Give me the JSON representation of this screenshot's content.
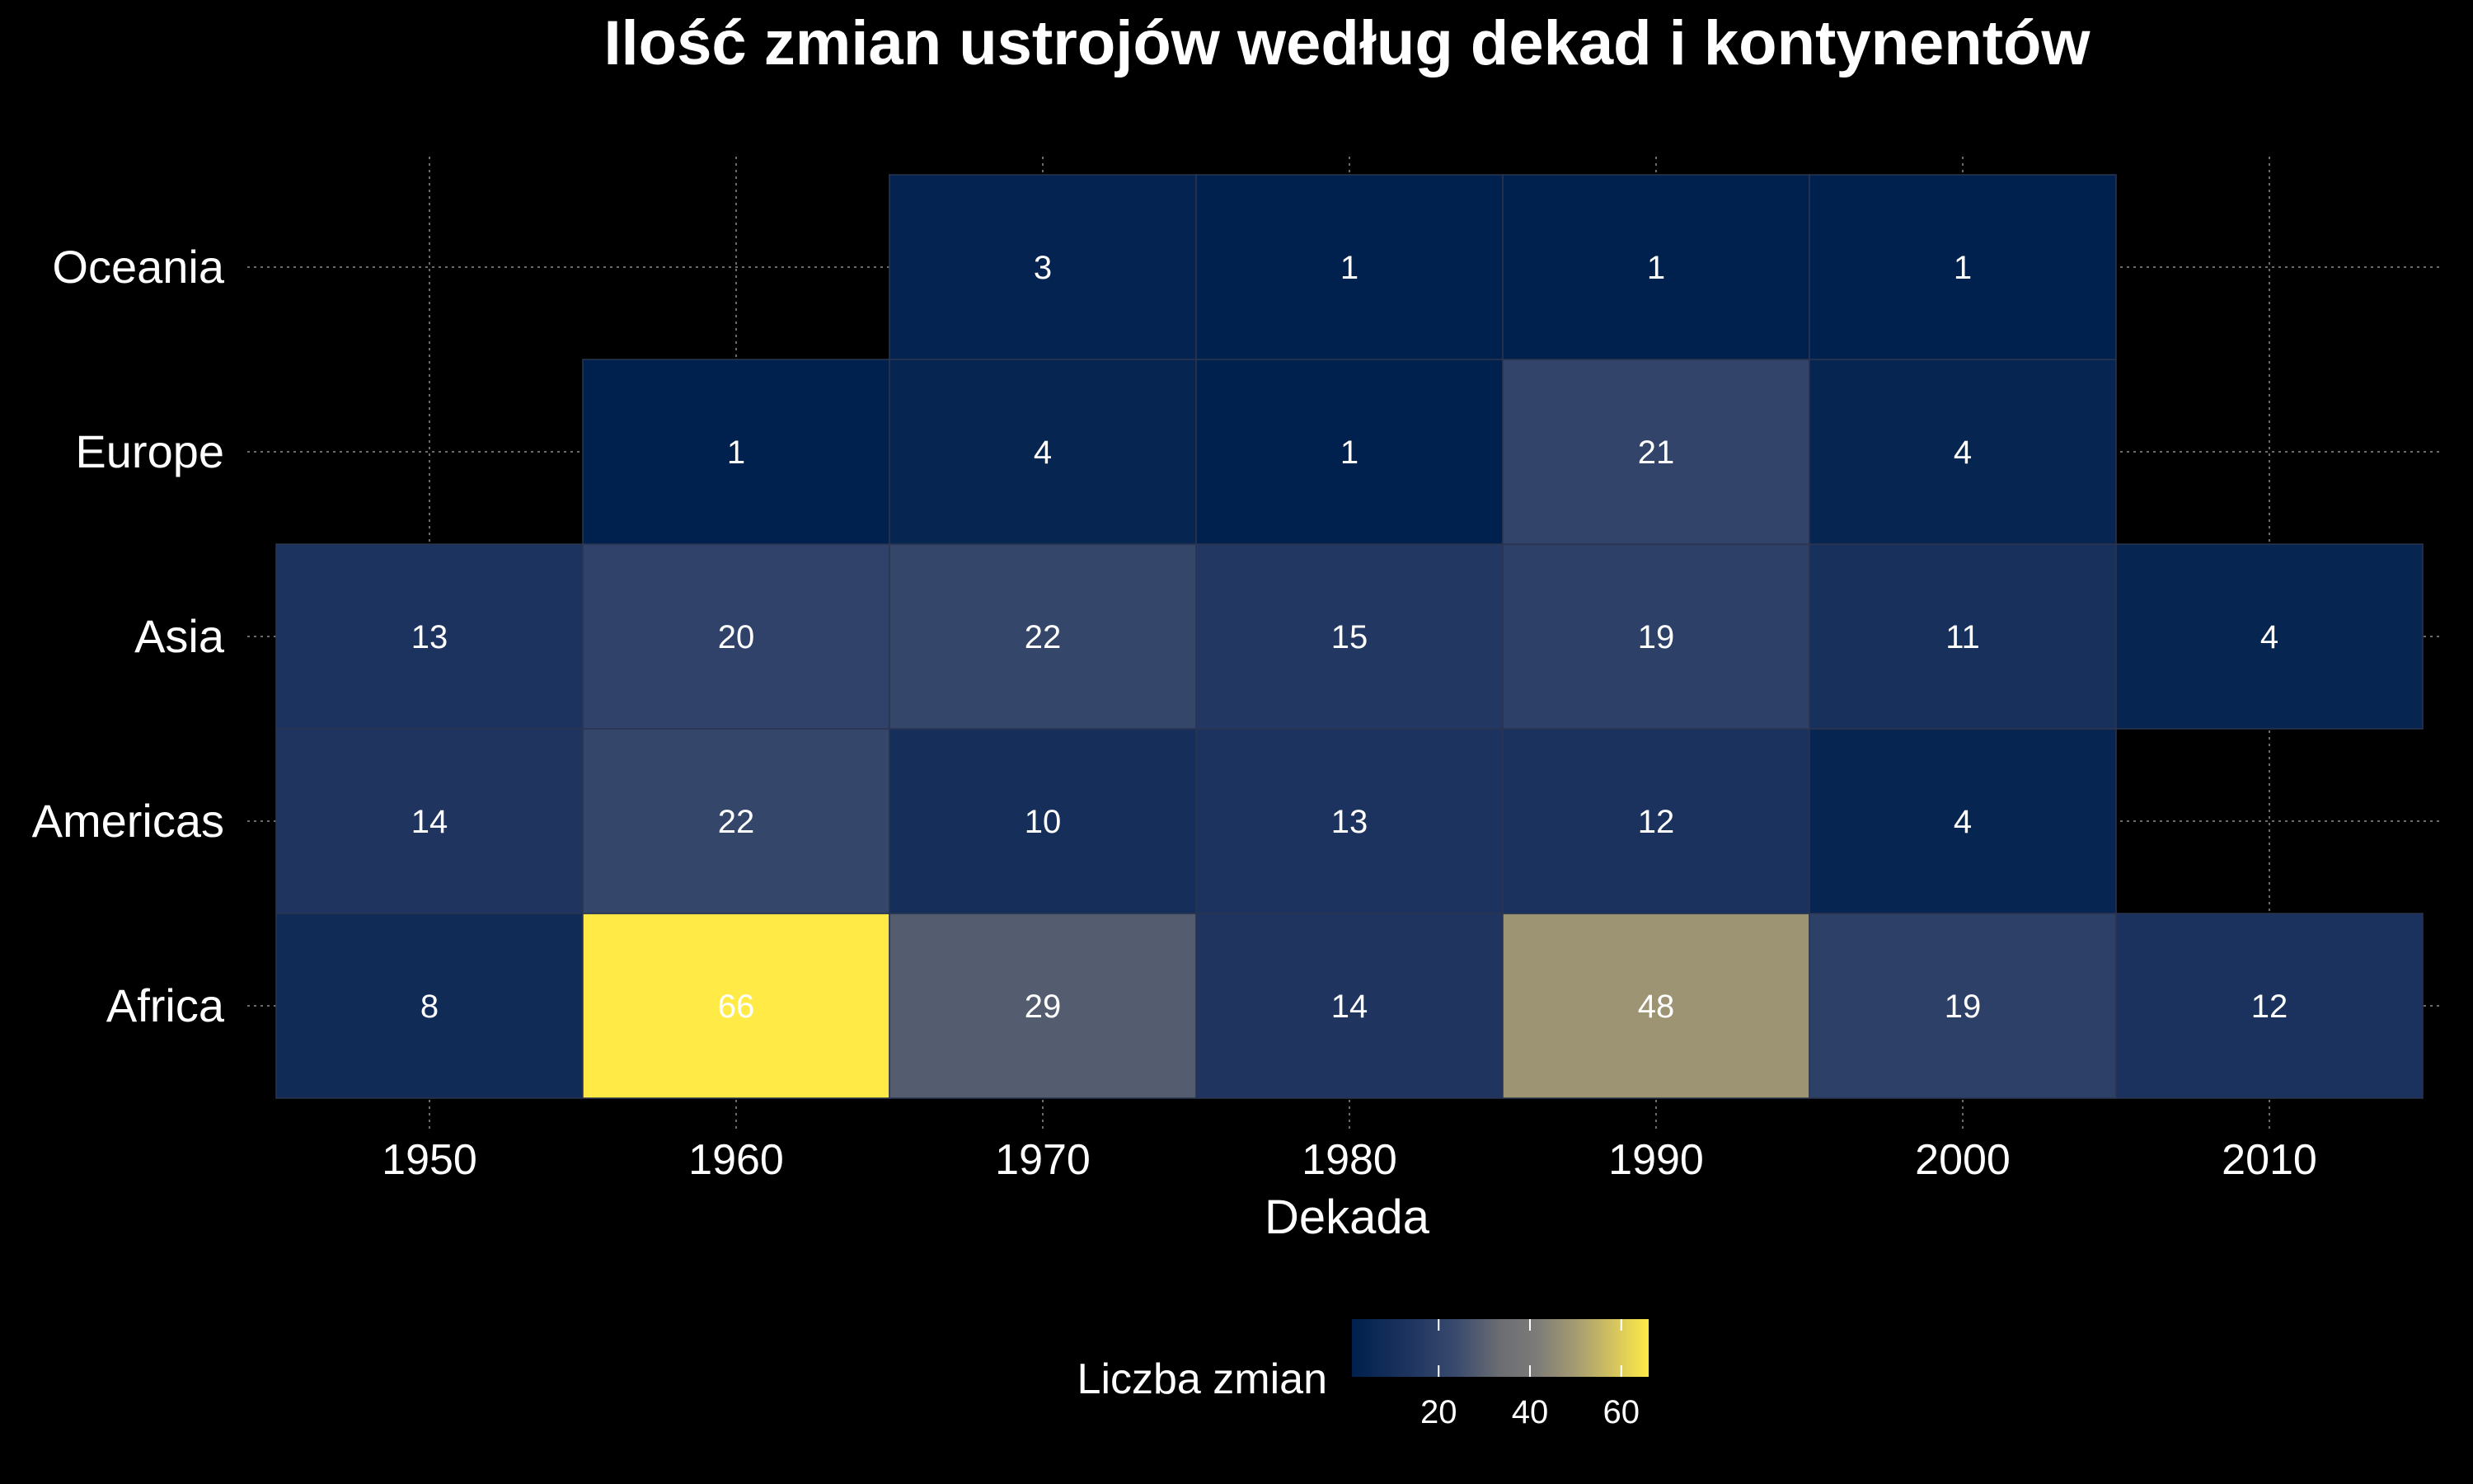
{
  "chart_data": {
    "type": "heatmap",
    "title": "Ilość zmian ustrojów według dekad i kontynentów",
    "xlabel": "Dekada",
    "ylabel": "",
    "x": [
      "1950",
      "1960",
      "1970",
      "1980",
      "1990",
      "2000",
      "2010"
    ],
    "y": [
      "Africa",
      "Americas",
      "Asia",
      "Europe",
      "Oceania"
    ],
    "cells": [
      {
        "x": "1950",
        "y": "Africa",
        "value": 8
      },
      {
        "x": "1960",
        "y": "Africa",
        "value": 66
      },
      {
        "x": "1970",
        "y": "Africa",
        "value": 29
      },
      {
        "x": "1980",
        "y": "Africa",
        "value": 14
      },
      {
        "x": "1990",
        "y": "Africa",
        "value": 48
      },
      {
        "x": "2000",
        "y": "Africa",
        "value": 19
      },
      {
        "x": "2010",
        "y": "Africa",
        "value": 12
      },
      {
        "x": "1950",
        "y": "Americas",
        "value": 14
      },
      {
        "x": "1960",
        "y": "Americas",
        "value": 22
      },
      {
        "x": "1970",
        "y": "Americas",
        "value": 10
      },
      {
        "x": "1980",
        "y": "Americas",
        "value": 13
      },
      {
        "x": "1990",
        "y": "Americas",
        "value": 12
      },
      {
        "x": "2000",
        "y": "Americas",
        "value": 4
      },
      {
        "x": "1950",
        "y": "Asia",
        "value": 13
      },
      {
        "x": "1960",
        "y": "Asia",
        "value": 20
      },
      {
        "x": "1970",
        "y": "Asia",
        "value": 22
      },
      {
        "x": "1980",
        "y": "Asia",
        "value": 15
      },
      {
        "x": "1990",
        "y": "Asia",
        "value": 19
      },
      {
        "x": "2000",
        "y": "Asia",
        "value": 11
      },
      {
        "x": "2010",
        "y": "Asia",
        "value": 4
      },
      {
        "x": "1960",
        "y": "Europe",
        "value": 1
      },
      {
        "x": "1970",
        "y": "Europe",
        "value": 4
      },
      {
        "x": "1980",
        "y": "Europe",
        "value": 1
      },
      {
        "x": "1990",
        "y": "Europe",
        "value": 21
      },
      {
        "x": "2000",
        "y": "Europe",
        "value": 4
      },
      {
        "x": "1970",
        "y": "Oceania",
        "value": 3
      },
      {
        "x": "1980",
        "y": "Oceania",
        "value": 1
      },
      {
        "x": "1990",
        "y": "Oceania",
        "value": 1
      },
      {
        "x": "2000",
        "y": "Oceania",
        "value": 1
      }
    ],
    "legend": {
      "title": "Liczba zmian",
      "ticks": [
        20,
        40,
        60
      ],
      "placement": "bottom",
      "range": [
        1,
        66
      ]
    },
    "colors": {
      "background": "#000000",
      "low": "#00204d",
      "mid": "#7c7b78",
      "high": "#ffea46",
      "grid": "#6b6b6b"
    },
    "grid": true
  }
}
